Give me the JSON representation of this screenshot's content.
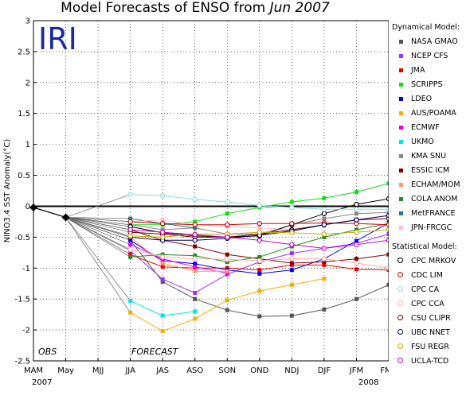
{
  "title": {
    "prefix": "Model Forecasts of ENSO from ",
    "date": "Jun 2007"
  },
  "logo": "IRI",
  "annotations": {
    "obs": "OBS",
    "forecast": "FORECAST",
    "year_start": "2007",
    "year_end": "2008"
  },
  "chart_data": {
    "type": "line",
    "ylabel": "NINO3.4 SST Anomaly(°C)",
    "xlabel": "",
    "categories": [
      "MAM",
      "May",
      "MJJ",
      "JJA",
      "JAS",
      "ASO",
      "SON",
      "OND",
      "NDJ",
      "DJF",
      "JFM",
      "FMA"
    ],
    "ylim": [
      -2.5,
      3
    ],
    "yticks": [
      3,
      2.5,
      2,
      1.5,
      1,
      0.5,
      0,
      -0.5,
      -1,
      -1.5,
      -2,
      -2.5
    ],
    "grid": true,
    "zero_line": true,
    "observed": {
      "name": "OBS",
      "x": [
        "MAM",
        "May"
      ],
      "values": [
        -0.02,
        -0.18
      ]
    },
    "legend_groups": {
      "dynamical": "Dynamical Model:",
      "statistical": "Statistical Model:"
    },
    "series": [
      {
        "name": "NASA GMAO",
        "group": "dynamical",
        "color": "#555555",
        "values": [
          null,
          null,
          null,
          -0.55,
          -1.22,
          -1.5,
          -1.68,
          -1.78,
          -1.77,
          -1.67,
          -1.5,
          -1.27
        ]
      },
      {
        "name": "NCEP CFS",
        "group": "dynamical",
        "color": "#9933ff",
        "values": [
          null,
          null,
          null,
          -0.72,
          -1.18,
          -1.4,
          -1.1,
          -0.9,
          -0.76,
          -0.68,
          -0.6,
          -0.45
        ]
      },
      {
        "name": "JMA",
        "group": "dynamical",
        "color": "#ee0000",
        "values": [
          null,
          null,
          null,
          -0.78,
          -0.98,
          -1.0,
          -1.0,
          -1.03,
          -0.95,
          -0.95,
          -1.02,
          -1.03
        ]
      },
      {
        "name": "SCRIPPS",
        "group": "dynamical",
        "color": "#11dd11",
        "values": [
          null,
          null,
          null,
          -0.3,
          -0.3,
          -0.25,
          -0.12,
          -0.02,
          0.07,
          0.13,
          0.23,
          0.37
        ]
      },
      {
        "name": "LDEO",
        "group": "dynamical",
        "color": "#0000ee",
        "values": [
          null,
          null,
          null,
          -0.55,
          -0.88,
          -0.93,
          -1.03,
          -1.09,
          -1.03,
          -0.85,
          -0.56,
          -0.27
        ]
      },
      {
        "name": "AUS/POAMA",
        "group": "dynamical",
        "color": "#ffaa00",
        "values": [
          null,
          null,
          null,
          -1.72,
          -2.02,
          -1.82,
          -1.52,
          -1.37,
          -1.27,
          -1.17,
          null,
          null
        ]
      },
      {
        "name": "ECMWF",
        "group": "dynamical",
        "color": "#ee00ee",
        "values": [
          null,
          null,
          null,
          -0.62,
          -0.85,
          -0.98,
          -1.08,
          null,
          null,
          null,
          null,
          null
        ]
      },
      {
        "name": "UKMO",
        "group": "dynamical",
        "color": "#00e5ee",
        "values": [
          null,
          null,
          null,
          -1.53,
          -1.77,
          -1.7,
          null,
          null,
          null,
          null,
          null,
          null
        ]
      },
      {
        "name": "KMA SNU",
        "group": "dynamical",
        "color": "#888888",
        "values": [
          null,
          null,
          null,
          -0.3,
          -0.38,
          -0.35,
          -0.45,
          -0.45,
          -0.3,
          -0.2,
          -0.12,
          -0.1
        ]
      },
      {
        "name": "ESSIC ICM",
        "group": "dynamical",
        "color": "#8b0000",
        "values": [
          null,
          null,
          null,
          -0.38,
          -0.55,
          -0.65,
          -0.78,
          -0.85,
          -0.92,
          -0.9,
          -0.85,
          -0.78
        ]
      },
      {
        "name": "ECHAM/MOM",
        "group": "dynamical",
        "color": "#ff9966",
        "values": [
          null,
          null,
          null,
          -0.5,
          -0.92,
          -1.05,
          -1.05,
          null,
          null,
          null,
          null,
          null
        ]
      },
      {
        "name": "COLA ANOM",
        "group": "dynamical",
        "color": "#228b22",
        "values": [
          null,
          null,
          null,
          -0.82,
          -0.78,
          -0.8,
          -0.9,
          -0.82,
          -0.65,
          -0.5,
          -0.38,
          -0.28
        ]
      },
      {
        "name": "MetFRANCE",
        "group": "dynamical",
        "color": "#1f7a8c",
        "values": [
          null,
          null,
          null,
          -0.2,
          -0.28,
          -0.35,
          null,
          null,
          null,
          null,
          null,
          null
        ]
      },
      {
        "name": "JPN-FRCGC",
        "group": "dynamical",
        "color": "#ffbbcc",
        "values": [
          null,
          null,
          null,
          -0.25,
          -0.22,
          -0.3,
          -0.33,
          -0.35,
          -0.38,
          -0.3,
          -0.22,
          -0.15
        ]
      },
      {
        "name": "CPC MRKOV",
        "group": "statistical",
        "color": "#000000",
        "values": [
          null,
          null,
          null,
          -0.33,
          -0.43,
          -0.48,
          -0.5,
          -0.48,
          -0.3,
          -0.12,
          0.03,
          0.12
        ]
      },
      {
        "name": "CDC LIM",
        "group": "statistical",
        "color": "#cc0000",
        "values": [
          null,
          null,
          null,
          -0.25,
          -0.28,
          -0.3,
          -0.3,
          -0.28,
          -0.28,
          -0.27,
          -0.28,
          -0.3
        ]
      },
      {
        "name": "CPC CA",
        "group": "statistical",
        "color": "#88dddd",
        "values": [
          null,
          null,
          null,
          0.19,
          0.17,
          0.11,
          0.07,
          0.01,
          -0.02,
          -0.05,
          -0.05,
          -0.05
        ]
      },
      {
        "name": "CPC CCA",
        "group": "statistical",
        "color": "#ffaaaa",
        "values": [
          null,
          null,
          null,
          -0.7,
          -0.82,
          -0.85,
          -0.86,
          -0.88,
          -0.85,
          -0.85,
          -0.92,
          -1.0
        ]
      },
      {
        "name": "CSU CLIPR",
        "group": "statistical",
        "color": "#660000",
        "values": [
          null,
          null,
          null,
          -0.42,
          -0.45,
          -0.5,
          -0.5,
          -0.45,
          -0.38,
          -0.3,
          -0.22,
          -0.2
        ]
      },
      {
        "name": "UBC NNET",
        "group": "statistical",
        "color": "#000066",
        "values": [
          null,
          null,
          null,
          -0.5,
          -0.55,
          -0.55,
          -0.52,
          -0.47,
          -0.4,
          -0.3,
          -0.22,
          -0.15
        ]
      },
      {
        "name": "FSU REGR",
        "group": "statistical",
        "color": "#ccaa00",
        "values": [
          null,
          null,
          null,
          -0.48,
          -0.5,
          -0.45,
          -0.45,
          -0.42,
          -0.43,
          -0.45,
          -0.42,
          -0.38
        ]
      },
      {
        "name": "UCLA-TCD",
        "group": "statistical",
        "color": "#cc00cc",
        "values": [
          null,
          null,
          null,
          -0.38,
          -0.42,
          -0.46,
          -0.5,
          -0.55,
          -0.62,
          -0.68,
          -0.62,
          -0.55
        ]
      }
    ]
  }
}
